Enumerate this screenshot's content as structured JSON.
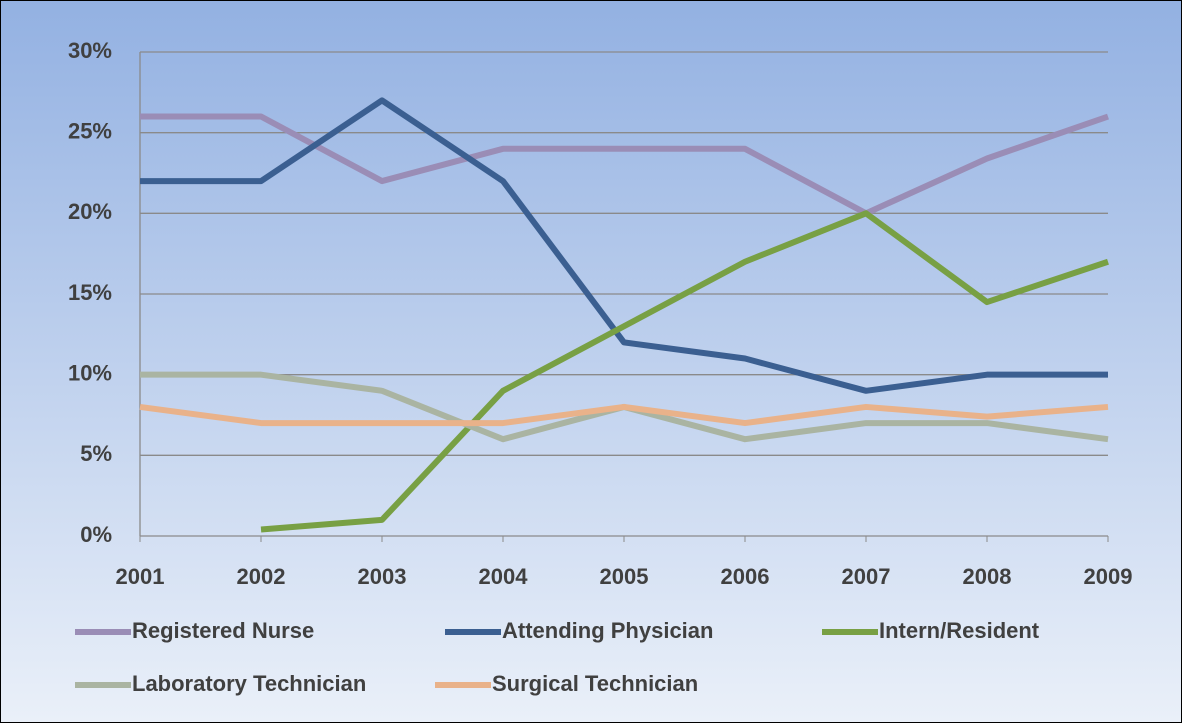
{
  "chart_data": {
    "type": "line",
    "categories": [
      "2001",
      "2002",
      "2003",
      "2004",
      "2005",
      "2006",
      "2007",
      "2008",
      "2009"
    ],
    "series": [
      {
        "name": "Registered Nurse",
        "color": "#9a8db6",
        "values": [
          26,
          26,
          22,
          24,
          24,
          24,
          20,
          23.4,
          26
        ]
      },
      {
        "name": "Attending Physician",
        "color": "#3b5f91",
        "values": [
          22,
          22,
          27,
          22,
          12,
          11,
          9,
          10,
          10
        ]
      },
      {
        "name": "Intern/Resident",
        "color": "#78a044",
        "values": [
          null,
          0.4,
          1,
          9,
          13,
          17,
          20,
          14.5,
          17
        ]
      },
      {
        "name": "Laboratory Technician",
        "color": "#aab4a2",
        "values": [
          10,
          10,
          9,
          6,
          8,
          6,
          7,
          7,
          6
        ]
      },
      {
        "name": "Surgical Technician",
        "color": "#e9b28a",
        "values": [
          8,
          7,
          7,
          7,
          8,
          7,
          8,
          7.4,
          8
        ]
      }
    ],
    "ylim": [
      0,
      30
    ],
    "yticks": [
      {
        "value": 0,
        "label": "0%"
      },
      {
        "value": 5,
        "label": "5%"
      },
      {
        "value": 10,
        "label": "10%"
      },
      {
        "value": 15,
        "label": "15%"
      },
      {
        "value": 20,
        "label": "20%"
      },
      {
        "value": 25,
        "label": "25%"
      },
      {
        "value": 30,
        "label": "30%"
      }
    ],
    "grid": true
  }
}
